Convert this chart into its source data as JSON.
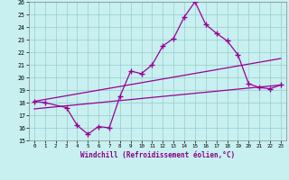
{
  "xlabel": "Windchill (Refroidissement éolien,°C)",
  "bg_color": "#c8f0f0",
  "line_color": "#990099",
  "grid_color": "#99cccc",
  "xlim": [
    -0.5,
    23.5
  ],
  "ylim": [
    15,
    26
  ],
  "xticks": [
    0,
    1,
    2,
    3,
    4,
    5,
    6,
    7,
    8,
    9,
    10,
    11,
    12,
    13,
    14,
    15,
    16,
    17,
    18,
    19,
    20,
    21,
    22,
    23
  ],
  "yticks": [
    15,
    16,
    17,
    18,
    19,
    20,
    21,
    22,
    23,
    24,
    25,
    26
  ],
  "line1_x": [
    0,
    1,
    3,
    4,
    5,
    6,
    7,
    8,
    9,
    10,
    11,
    12,
    13,
    14,
    15,
    16,
    17,
    18,
    19,
    20,
    21,
    22,
    23
  ],
  "line1_y": [
    18.1,
    18.0,
    17.6,
    16.2,
    15.5,
    16.1,
    16.0,
    18.5,
    20.5,
    20.3,
    21.0,
    22.5,
    23.1,
    24.8,
    26.0,
    24.2,
    23.5,
    22.9,
    21.8,
    19.5,
    19.2,
    19.1,
    19.4
  ],
  "line2_x": [
    0,
    23
  ],
  "line2_y": [
    18.1,
    21.5
  ],
  "line3_x": [
    0,
    23
  ],
  "line3_y": [
    17.5,
    19.4
  ]
}
